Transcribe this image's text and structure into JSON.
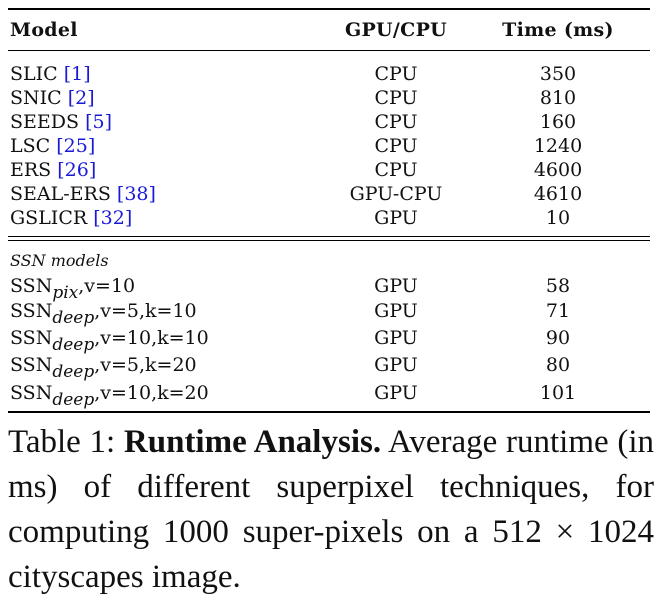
{
  "header": {
    "model": "Model",
    "device": "GPU/CPU",
    "time": "Time (ms)"
  },
  "baselines": [
    {
      "name": "SLIC",
      "cite": "1",
      "device": "CPU",
      "time": "350"
    },
    {
      "name": "SNIC",
      "cite": "2",
      "device": "CPU",
      "time": "810"
    },
    {
      "name": "SEEDS",
      "cite": "5",
      "device": "CPU",
      "time": "160"
    },
    {
      "name": "LSC",
      "cite": "25",
      "device": "CPU",
      "time": "1240"
    },
    {
      "name": "ERS",
      "cite": "26",
      "device": "CPU",
      "time": "4600"
    },
    {
      "name": "SEAL-ERS",
      "cite": "38",
      "device": "GPU-CPU",
      "time": "4610"
    },
    {
      "name": "GSLICR",
      "cite": "32",
      "device": "GPU",
      "time": "10"
    }
  ],
  "section_label": "SSN models",
  "ssn": [
    {
      "base": "SSN",
      "sub": "pix",
      "params": ",v=10",
      "device": "GPU",
      "time": "58"
    },
    {
      "base": "SSN",
      "sub": "deep",
      "params": ",v=5,k=10",
      "device": "GPU",
      "time": "71"
    },
    {
      "base": "SSN",
      "sub": "deep",
      "params": ",v=10,k=10",
      "device": "GPU",
      "time": "90"
    },
    {
      "base": "SSN",
      "sub": "deep",
      "params": ",v=5,k=20",
      "device": "GPU",
      "time": "80"
    },
    {
      "base": "SSN",
      "sub": "deep",
      "params": ",v=10,k=20",
      "device": "GPU",
      "time": "101"
    }
  ],
  "caption": {
    "label": "Table 1: ",
    "title": "Runtime Analysis.",
    "text": " Average runtime (in ms) of different superpixel techniques, for computing 1000 super-pixels on a 512 × 1024 cityscapes image."
  }
}
